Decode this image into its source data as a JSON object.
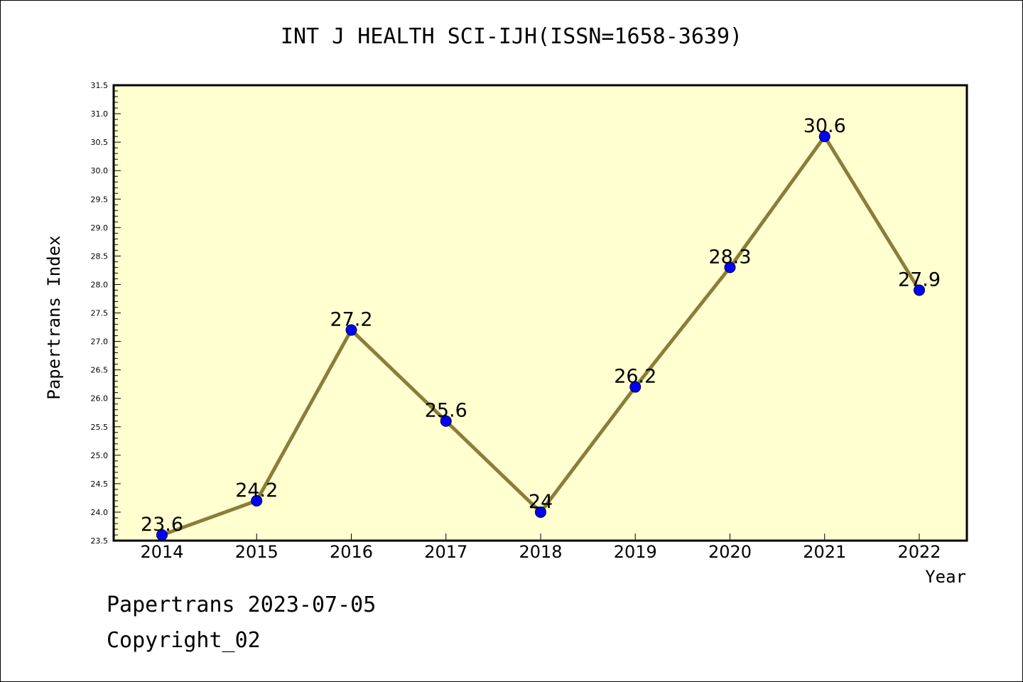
{
  "chart_data": {
    "type": "line",
    "title": "INT J HEALTH SCI-IJH(ISSN=1658-3639)",
    "xlabel": "Year",
    "ylabel": "Papertrans Index",
    "categories": [
      "2014",
      "2015",
      "2016",
      "2017",
      "2018",
      "2019",
      "2020",
      "2021",
      "2022"
    ],
    "values": [
      23.6,
      24.2,
      27.2,
      25.6,
      24.0,
      26.2,
      28.3,
      30.6,
      27.9
    ],
    "data_labels": [
      "23.6",
      "24.2",
      "27.2",
      "25.6",
      "24",
      "26.2",
      "28.3",
      "30.6",
      "27.9"
    ],
    "ylim": [
      23.5,
      31.5
    ],
    "yticks": [
      "23.5",
      "24.0",
      "24.5",
      "25.0",
      "25.5",
      "26.0",
      "26.5",
      "27.0",
      "27.5",
      "28.0",
      "28.5",
      "29.0",
      "29.5",
      "30.0",
      "30.5",
      "31.0",
      "31.5"
    ],
    "grid": false,
    "colors": {
      "plot_background": "#ffffd0",
      "line": "#8b7d3a",
      "marker": "#0000ff"
    }
  },
  "footer": {
    "line1": "Papertrans 2023-07-05",
    "line2": "Copyright_02"
  }
}
